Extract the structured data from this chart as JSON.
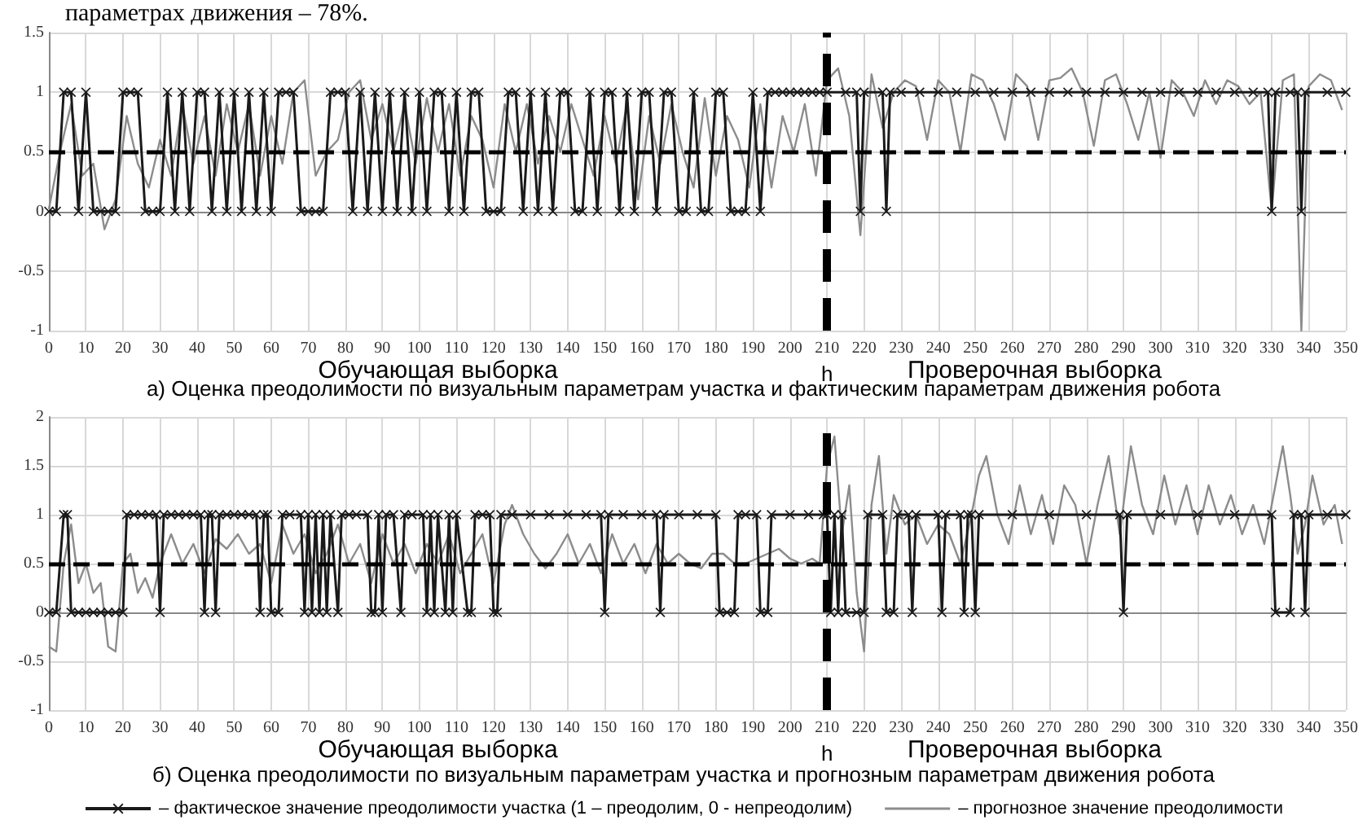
{
  "chart_data": [
    {
      "type": "line",
      "subtitle": "параметрах движения – 78%.",
      "title": "а) Оценка преодолимости по визуальным параметрам участка и фактическим параметрам движения робота",
      "annotations": [
        "Обучающая выборка",
        "Проверочная выборка"
      ],
      "xlim": [
        0,
        350
      ],
      "xticks": [
        0,
        10,
        20,
        30,
        40,
        50,
        60,
        70,
        80,
        90,
        100,
        110,
        120,
        130,
        140,
        150,
        160,
        170,
        180,
        190,
        200,
        210,
        220,
        230,
        240,
        250,
        260,
        270,
        280,
        290,
        300,
        310,
        320,
        330,
        340,
        350
      ],
      "ylim": [
        -1,
        1.5
      ],
      "yticks": [
        -1,
        -0.5,
        0,
        0.5,
        1,
        1.5
      ],
      "grid": true,
      "legend": false,
      "ref_lines": [
        {
          "axis": "y",
          "value": 0.5,
          "label": null,
          "color": "#000000",
          "line_style": "dashed"
        },
        {
          "axis": "x",
          "value": 210,
          "label": "h",
          "color": "#000000",
          "line_style": "dashed"
        }
      ],
      "series": [
        {
          "color": "#1a1a1a",
          "marker": "cross",
          "x": [
            0,
            2,
            4,
            6,
            8,
            10,
            12,
            14,
            16,
            18,
            20,
            22,
            24,
            26,
            28,
            30,
            32,
            34,
            36,
            38,
            40,
            42,
            44,
            46,
            48,
            50,
            52,
            54,
            56,
            58,
            60,
            62,
            64,
            66,
            68,
            70,
            72,
            74,
            76,
            78,
            80,
            82,
            84,
            86,
            88,
            90,
            92,
            94,
            96,
            98,
            100,
            102,
            104,
            106,
            108,
            110,
            112,
            114,
            116,
            118,
            120,
            122,
            124,
            126,
            128,
            130,
            132,
            134,
            136,
            138,
            140,
            142,
            144,
            146,
            148,
            150,
            152,
            154,
            156,
            158,
            160,
            162,
            164,
            166,
            168,
            170,
            172,
            174,
            176,
            178,
            180,
            182,
            184,
            186,
            188,
            190,
            192,
            194,
            196,
            198,
            200,
            202,
            204,
            206,
            208,
            210,
            215,
            218,
            219,
            220,
            225,
            226,
            227,
            230,
            235,
            240,
            245,
            250,
            255,
            260,
            265,
            270,
            275,
            280,
            285,
            290,
            295,
            300,
            305,
            310,
            315,
            320,
            325,
            329,
            330,
            331,
            335,
            337,
            338,
            339,
            345,
            350
          ],
          "values": [
            0,
            0,
            1,
            1,
            0,
            1,
            0,
            0,
            0,
            0,
            1,
            1,
            1,
            0,
            0,
            0,
            1,
            0,
            1,
            0,
            1,
            1,
            0,
            1,
            0,
            1,
            0,
            1,
            0,
            1,
            0,
            1,
            1,
            1,
            0,
            0,
            0,
            0,
            1,
            1,
            1,
            0,
            1,
            0,
            1,
            0,
            1,
            0,
            1,
            0,
            1,
            0,
            1,
            1,
            0,
            1,
            0,
            1,
            1,
            0,
            0,
            0,
            1,
            1,
            0,
            1,
            0,
            1,
            0,
            1,
            1,
            0,
            0,
            1,
            0,
            1,
            1,
            0,
            1,
            0,
            1,
            1,
            0,
            1,
            1,
            0,
            0,
            1,
            0,
            0,
            1,
            1,
            0,
            0,
            0,
            1,
            0,
            1,
            1,
            1,
            1,
            1,
            1,
            1,
            1,
            1,
            1,
            1,
            0,
            1,
            1,
            0,
            1,
            1,
            1,
            1,
            1,
            1,
            1,
            1,
            1,
            1,
            1,
            1,
            1,
            1,
            1,
            1,
            1,
            1,
            1,
            1,
            1,
            1,
            0,
            1,
            1,
            1,
            0,
            1,
            1,
            1
          ]
        },
        {
          "color": "#8c8c8c",
          "marker": "none",
          "x": [
            0,
            3,
            6,
            9,
            12,
            15,
            18,
            21,
            24,
            27,
            30,
            33,
            36,
            39,
            42,
            45,
            48,
            51,
            54,
            57,
            60,
            63,
            66,
            69,
            72,
            75,
            78,
            81,
            84,
            87,
            90,
            93,
            96,
            99,
            102,
            105,
            108,
            111,
            114,
            117,
            120,
            123,
            126,
            129,
            132,
            135,
            138,
            141,
            144,
            147,
            150,
            153,
            156,
            159,
            162,
            165,
            168,
            171,
            174,
            177,
            180,
            183,
            186,
            189,
            192,
            195,
            198,
            201,
            204,
            207,
            210,
            213,
            216,
            219,
            222,
            225,
            228,
            231,
            234,
            237,
            240,
            243,
            246,
            249,
            252,
            255,
            258,
            261,
            264,
            267,
            270,
            273,
            276,
            279,
            282,
            285,
            288,
            291,
            294,
            297,
            300,
            303,
            306,
            309,
            312,
            315,
            318,
            321,
            324,
            327,
            330,
            333,
            336,
            338,
            340,
            343,
            346,
            349
          ],
          "values": [
            0.02,
            0.5,
            0.9,
            0.3,
            0.4,
            -0.15,
            0.1,
            0.8,
            0.4,
            0.2,
            0.6,
            0.3,
            0.9,
            0.4,
            0.8,
            0.3,
            0.9,
            0.5,
            0.9,
            0.3,
            0.8,
            0.4,
            1.0,
            1.1,
            0.3,
            0.5,
            0.6,
            1.0,
            1.1,
            0.6,
            0.9,
            0.5,
            0.9,
            0.4,
            0.95,
            0.5,
            0.9,
            0.3,
            0.8,
            0.6,
            0.2,
            0.9,
            0.5,
            0.9,
            0.4,
            0.8,
            0.5,
            0.9,
            0.6,
            0.3,
            0.8,
            0.4,
            0.9,
            0.1,
            0.8,
            0.4,
            0.9,
            0.5,
            0.2,
            0.95,
            0.3,
            0.8,
            0.6,
            0.2,
            0.9,
            0.2,
            0.8,
            0.5,
            0.9,
            0.3,
            1.1,
            1.2,
            0.8,
            -0.2,
            1.15,
            0.7,
            1.0,
            1.1,
            1.05,
            0.6,
            1.1,
            1.0,
            0.5,
            1.15,
            1.1,
            0.9,
            0.6,
            1.15,
            1.05,
            0.6,
            1.1,
            1.12,
            1.2,
            1.0,
            0.55,
            1.1,
            1.15,
            0.9,
            0.6,
            1.0,
            0.45,
            1.1,
            1.0,
            0.8,
            1.1,
            0.9,
            1.1,
            1.05,
            0.9,
            1.0,
            0.0,
            1.1,
            1.15,
            -1.0,
            1.05,
            1.15,
            1.1,
            0.85
          ]
        }
      ]
    },
    {
      "type": "line",
      "title": "б) Оценка преодолимости по визуальным параметрам участка и прогнозным параметрам движения робота",
      "annotations": [
        "Обучающая выборка",
        "Проверочная выборка"
      ],
      "xlim": [
        0,
        350
      ],
      "xticks": [
        0,
        10,
        20,
        30,
        40,
        50,
        60,
        70,
        80,
        90,
        100,
        110,
        120,
        130,
        140,
        150,
        160,
        170,
        180,
        190,
        200,
        210,
        220,
        230,
        240,
        250,
        260,
        270,
        280,
        290,
        300,
        310,
        320,
        330,
        340,
        350
      ],
      "ylim": [
        -1,
        2
      ],
      "yticks": [
        -1,
        -0.5,
        0,
        0.5,
        1,
        1.5,
        2
      ],
      "grid": true,
      "legend": "bottom",
      "ref_lines": [
        {
          "axis": "y",
          "value": 0.5,
          "label": null,
          "color": "#000000",
          "line_style": "dashed"
        },
        {
          "axis": "x",
          "value": 210,
          "label": "h",
          "color": "#000000",
          "line_style": "dashed"
        }
      ],
      "series": [
        {
          "name": "– фактическое значение преодолимости участка (1 – преодолим, 0 - непреодолим)",
          "color": "#1a1a1a",
          "marker": "cross",
          "x": [
            0,
            2,
            4,
            5,
            6,
            8,
            10,
            12,
            14,
            16,
            18,
            20,
            21,
            23,
            25,
            27,
            29,
            30,
            31,
            33,
            35,
            37,
            39,
            41,
            42,
            43,
            44,
            45,
            46,
            48,
            50,
            52,
            54,
            56,
            57,
            58,
            59,
            60,
            62,
            63,
            65,
            68,
            69,
            70,
            71,
            72,
            73,
            74,
            75,
            76,
            78,
            79,
            81,
            83,
            86,
            87,
            88,
            89,
            90,
            91,
            93,
            95,
            96,
            98,
            101,
            102,
            103,
            104,
            105,
            107,
            108,
            109,
            110,
            113,
            114,
            115,
            117,
            119,
            120,
            121,
            122,
            125,
            130,
            135,
            140,
            145,
            149,
            150,
            151,
            155,
            160,
            164,
            165,
            166,
            170,
            175,
            180,
            181,
            183,
            185,
            186,
            188,
            191,
            192,
            194,
            195,
            200,
            205,
            209,
            210,
            211,
            212,
            213,
            214,
            215,
            218,
            220,
            221,
            225,
            226,
            228,
            229,
            232,
            233,
            234,
            240,
            241,
            242,
            246,
            247,
            248,
            249,
            250,
            251,
            260,
            270,
            280,
            289,
            290,
            291,
            300,
            310,
            320,
            330,
            331,
            335,
            336,
            338,
            339,
            340,
            345,
            350
          ],
          "values": [
            0,
            0,
            1,
            1,
            0,
            0,
            0,
            0,
            0,
            0,
            0,
            0,
            1,
            1,
            1,
            1,
            1,
            0,
            1,
            1,
            1,
            1,
            1,
            1,
            0,
            1,
            1,
            0,
            1,
            1,
            1,
            1,
            1,
            1,
            0,
            1,
            1,
            0,
            0,
            1,
            1,
            1,
            0,
            1,
            0,
            1,
            0,
            1,
            0,
            1,
            0,
            1,
            1,
            1,
            1,
            0,
            0,
            1,
            0,
            1,
            1,
            0,
            1,
            1,
            1,
            0,
            1,
            0,
            1,
            0,
            1,
            0,
            1,
            0,
            0,
            1,
            1,
            1,
            0,
            0,
            1,
            1,
            1,
            1,
            1,
            1,
            1,
            0,
            1,
            1,
            1,
            1,
            0,
            1,
            1,
            1,
            1,
            0,
            0,
            0,
            1,
            1,
            1,
            0,
            0,
            1,
            1,
            1,
            1,
            1,
            0,
            1,
            0,
            1,
            0,
            0,
            0,
            1,
            1,
            0,
            0,
            1,
            1,
            0,
            1,
            1,
            0,
            1,
            1,
            0,
            1,
            1,
            0,
            1,
            1,
            1,
            1,
            1,
            0,
            1,
            1,
            1,
            1,
            1,
            0,
            0,
            1,
            1,
            0,
            1,
            1,
            1
          ]
        },
        {
          "name": "– прогнозное значение преодолимости",
          "color": "#8c8c8c",
          "marker": "none",
          "x": [
            0,
            2,
            4,
            6,
            8,
            10,
            12,
            14,
            16,
            18,
            20,
            22,
            24,
            26,
            28,
            30,
            33,
            36,
            39,
            42,
            45,
            48,
            51,
            54,
            57,
            60,
            63,
            66,
            69,
            72,
            75,
            78,
            81,
            84,
            87,
            90,
            93,
            96,
            99,
            102,
            105,
            108,
            111,
            114,
            117,
            120,
            123,
            125,
            128,
            131,
            134,
            137,
            140,
            143,
            146,
            149,
            152,
            155,
            158,
            161,
            164,
            167,
            170,
            173,
            176,
            179,
            182,
            185,
            188,
            191,
            194,
            197,
            200,
            203,
            206,
            208,
            210,
            212,
            214,
            216,
            218,
            220,
            222,
            224,
            226,
            228,
            231,
            234,
            237,
            240,
            243,
            246,
            249,
            251,
            253,
            256,
            259,
            262,
            265,
            268,
            271,
            274,
            277,
            280,
            283,
            286,
            289,
            292,
            295,
            298,
            301,
            304,
            307,
            310,
            313,
            316,
            319,
            322,
            325,
            328,
            331,
            333,
            335,
            337,
            339,
            341,
            344,
            347,
            349
          ],
          "values": [
            -0.35,
            -0.4,
            0.5,
            0.9,
            0.3,
            0.5,
            0.2,
            0.3,
            -0.35,
            -0.4,
            0.5,
            0.6,
            0.2,
            0.35,
            0.15,
            0.5,
            0.8,
            0.5,
            0.7,
            0.4,
            0.75,
            0.65,
            0.8,
            0.6,
            0.7,
            0.3,
            0.9,
            0.6,
            0.8,
            0.4,
            0.6,
            0.9,
            0.5,
            0.7,
            0.3,
            0.8,
            0.5,
            0.7,
            0.4,
            0.7,
            0.5,
            0.8,
            0.4,
            0.6,
            0.8,
            0.3,
            0.9,
            1.1,
            0.8,
            0.6,
            0.45,
            0.6,
            0.8,
            0.5,
            0.7,
            0.4,
            0.8,
            0.5,
            0.7,
            0.4,
            0.7,
            0.5,
            0.6,
            0.5,
            0.45,
            0.6,
            0.6,
            0.5,
            0.5,
            0.55,
            0.6,
            0.65,
            0.55,
            0.5,
            0.55,
            0.5,
            1.5,
            1.8,
            0.8,
            1.3,
            0.2,
            -0.4,
            1.1,
            1.6,
            0.6,
            1.2,
            0.9,
            1.0,
            0.7,
            0.9,
            0.8,
            0.5,
            1.0,
            1.4,
            1.6,
            1.0,
            0.7,
            1.3,
            0.8,
            1.2,
            0.7,
            1.3,
            1.1,
            0.5,
            1.1,
            1.6,
            0.8,
            1.7,
            1.1,
            0.8,
            1.4,
            0.9,
            1.3,
            0.8,
            1.3,
            0.9,
            1.2,
            0.8,
            1.1,
            0.7,
            1.3,
            1.7,
            1.2,
            0.6,
            0.9,
            1.4,
            0.9,
            1.1,
            0.7
          ]
        }
      ]
    }
  ]
}
